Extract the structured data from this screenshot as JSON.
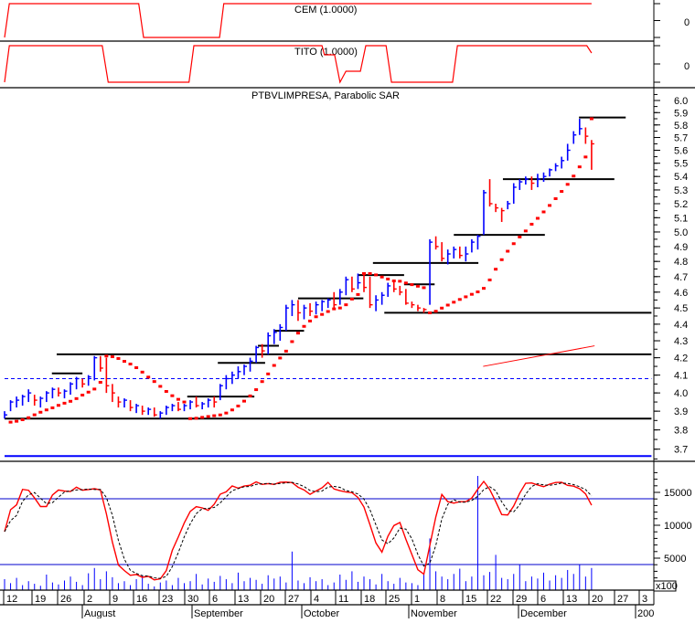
{
  "panels": {
    "cem": {
      "label": "CEM (1.0000)",
      "axis_label": "0",
      "steps": [
        [
          0,
          -1
        ],
        [
          0.8,
          1
        ],
        [
          22.4,
          1
        ],
        [
          23.2,
          -1
        ],
        [
          35.9,
          -1
        ],
        [
          36.6,
          1
        ],
        [
          98,
          1
        ]
      ]
    },
    "tito": {
      "label": "TITO (1.0000)",
      "axis_label": "0",
      "steps": [
        [
          0,
          -1
        ],
        [
          0.8,
          1
        ],
        [
          16.3,
          1
        ],
        [
          17.3,
          -1
        ],
        [
          30.8,
          -1
        ],
        [
          31.6,
          1
        ],
        [
          53,
          1
        ],
        [
          53.4,
          0.5
        ],
        [
          55.1,
          0.5
        ],
        [
          56,
          -1
        ],
        [
          57,
          -0.4
        ],
        [
          59.4,
          -0.4
        ],
        [
          60.3,
          1
        ],
        [
          63.7,
          1
        ],
        [
          64.6,
          -1
        ],
        [
          74.8,
          -1
        ],
        [
          75.6,
          1
        ],
        [
          97.2,
          1
        ],
        [
          98,
          0.6
        ]
      ]
    },
    "price": {
      "title": "PTBVLIMPRESA, Parabolic SAR"
    }
  },
  "chart_data": {
    "type": "ohlc",
    "title": "PTBVLIMPRESA, Parabolic SAR",
    "y_scale": "log",
    "ylim": [
      3.66,
      6.05
    ],
    "y_ticks": [
      "6.0",
      "5.9",
      "5.8",
      "5.7",
      "5.6",
      "5.5",
      "5.4",
      "5.3",
      "5.2",
      "5.1",
      "5.0",
      "4.9",
      "4.8",
      "4.7",
      "4.6",
      "4.5",
      "4.4",
      "4.3",
      "4.2",
      "4.1",
      "4.0",
      "3.9",
      "3.8",
      "3.7"
    ],
    "bars_hlc": [
      [
        3.9,
        3.86,
        3.88
      ],
      [
        3.96,
        3.9,
        3.95
      ],
      [
        3.98,
        3.92,
        3.96
      ],
      [
        3.99,
        3.93,
        3.98
      ],
      [
        4.02,
        3.95,
        4.0
      ],
      [
        3.99,
        3.93,
        3.96
      ],
      [
        3.98,
        3.92,
        3.97
      ],
      [
        4.01,
        3.95,
        4.0
      ],
      [
        4.03,
        3.97,
        4.02
      ],
      [
        4.03,
        3.98,
        4.0
      ],
      [
        4.02,
        3.97,
        4.01
      ],
      [
        4.06,
        3.99,
        4.05
      ],
      [
        4.09,
        4.02,
        4.08
      ],
      [
        4.08,
        4.03,
        4.05
      ],
      [
        4.1,
        4.04,
        4.09
      ],
      [
        4.21,
        4.07,
        4.2
      ],
      [
        4.21,
        4.12,
        4.14
      ],
      [
        4.2,
        4.0,
        4.04
      ],
      [
        4.05,
        3.95,
        4.0
      ],
      [
        3.98,
        3.92,
        3.95
      ],
      [
        3.97,
        3.92,
        3.96
      ],
      [
        3.96,
        3.9,
        3.92
      ],
      [
        3.94,
        3.89,
        3.93
      ],
      [
        3.93,
        3.88,
        3.9
      ],
      [
        3.92,
        3.88,
        3.91
      ],
      [
        3.92,
        3.87,
        3.88
      ],
      [
        3.9,
        3.86,
        3.89
      ],
      [
        3.93,
        3.88,
        3.92
      ],
      [
        3.94,
        3.9,
        3.93
      ],
      [
        3.95,
        3.9,
        3.91
      ],
      [
        3.94,
        3.9,
        3.93
      ],
      [
        3.96,
        3.91,
        3.95
      ],
      [
        3.98,
        3.92,
        3.93
      ],
      [
        3.95,
        3.91,
        3.94
      ],
      [
        3.97,
        3.92,
        3.96
      ],
      [
        3.98,
        3.92,
        3.95
      ],
      [
        4.05,
        3.96,
        4.04
      ],
      [
        4.1,
        4.02,
        4.08
      ],
      [
        4.12,
        4.05,
        4.1
      ],
      [
        4.15,
        4.08,
        4.12
      ],
      [
        4.16,
        4.1,
        4.15
      ],
      [
        4.2,
        4.12,
        4.18
      ],
      [
        4.27,
        4.17,
        4.26
      ],
      [
        4.28,
        4.2,
        4.24
      ],
      [
        4.35,
        4.22,
        4.33
      ],
      [
        4.37,
        4.28,
        4.35
      ],
      [
        4.4,
        4.3,
        4.38
      ],
      [
        4.52,
        4.36,
        4.5
      ],
      [
        4.55,
        4.45,
        4.52
      ],
      [
        4.55,
        4.42,
        4.47
      ],
      [
        4.52,
        4.43,
        4.5
      ],
      [
        4.53,
        4.45,
        4.48
      ],
      [
        4.54,
        4.46,
        4.52
      ],
      [
        4.55,
        4.48,
        4.54
      ],
      [
        4.56,
        4.5,
        4.55
      ],
      [
        4.6,
        4.5,
        4.52
      ],
      [
        4.62,
        4.52,
        4.6
      ],
      [
        4.7,
        4.58,
        4.68
      ],
      [
        4.7,
        4.6,
        4.62
      ],
      [
        4.72,
        4.62,
        4.66
      ],
      [
        4.72,
        4.6,
        4.63
      ],
      [
        4.7,
        4.5,
        4.52
      ],
      [
        4.58,
        4.48,
        4.55
      ],
      [
        4.6,
        4.52,
        4.58
      ],
      [
        4.66,
        4.57,
        4.64
      ],
      [
        4.67,
        4.6,
        4.62
      ],
      [
        4.64,
        4.58,
        4.6
      ],
      [
        4.62,
        4.52,
        4.53
      ],
      [
        4.54,
        4.5,
        4.52
      ],
      [
        4.52,
        4.48,
        4.5
      ],
      [
        4.5,
        4.47,
        4.49
      ],
      [
        4.95,
        4.52,
        4.93
      ],
      [
        4.97,
        4.88,
        4.9
      ],
      [
        4.93,
        4.8,
        4.82
      ],
      [
        4.88,
        4.78,
        4.85
      ],
      [
        4.9,
        4.82,
        4.88
      ],
      [
        4.9,
        4.82,
        4.84
      ],
      [
        4.9,
        4.8,
        4.85
      ],
      [
        4.95,
        4.86,
        4.93
      ],
      [
        4.98,
        4.88,
        4.97
      ],
      [
        5.3,
        4.98,
        5.28
      ],
      [
        5.38,
        5.18,
        5.2
      ],
      [
        5.2,
        5.14,
        5.17
      ],
      [
        5.17,
        5.07,
        5.15
      ],
      [
        5.22,
        5.16,
        5.2
      ],
      [
        5.35,
        5.2,
        5.32
      ],
      [
        5.38,
        5.3,
        5.36
      ],
      [
        5.4,
        5.34,
        5.38
      ],
      [
        5.4,
        5.3,
        5.35
      ],
      [
        5.42,
        5.32,
        5.38
      ],
      [
        5.43,
        5.36,
        5.4
      ],
      [
        5.46,
        5.4,
        5.45
      ],
      [
        5.5,
        5.44,
        5.48
      ],
      [
        5.55,
        5.46,
        5.52
      ],
      [
        5.65,
        5.52,
        5.6
      ],
      [
        5.75,
        5.65,
        5.72
      ],
      [
        5.85,
        5.72,
        5.77
      ],
      [
        5.78,
        5.65,
        5.71
      ],
      [
        5.68,
        5.45,
        5.65
      ]
    ],
    "horizontal_lines": [
      {
        "level": 3.86,
        "from": 0,
        "to": 108,
        "color": "#000000"
      },
      {
        "level": 4.22,
        "from": 8.7,
        "to": 108,
        "color": "#000000"
      },
      {
        "level": 4.47,
        "from": 63.4,
        "to": 108,
        "color": "#000000"
      },
      {
        "level": 4.08,
        "from": 0,
        "to": 108,
        "color": "#0000ff",
        "dashed": true
      },
      {
        "level": 3.665,
        "from": 0,
        "to": 108,
        "color": "#0000ff"
      },
      {
        "level": 4.11,
        "from": 7.9,
        "to": 13
      },
      {
        "level": 3.98,
        "from": 30.5,
        "to": 41.7
      },
      {
        "level": 4.17,
        "from": 35.6,
        "to": 43.5
      },
      {
        "level": 4.27,
        "from": 42.3,
        "to": 45.8
      },
      {
        "level": 4.36,
        "from": 45,
        "to": 50
      },
      {
        "level": 4.56,
        "from": 49,
        "to": 59.9
      },
      {
        "level": 4.71,
        "from": 59.1,
        "to": 66.7
      },
      {
        "level": 4.65,
        "from": 66.7,
        "to": 71.8
      },
      {
        "level": 4.79,
        "from": 61.5,
        "to": 79.1
      },
      {
        "level": 4.98,
        "from": 75,
        "to": 90.2
      },
      {
        "level": 5.38,
        "from": 83.2,
        "to": 101.8
      },
      {
        "level": 5.86,
        "from": 95.9,
        "to": 103.7
      }
    ],
    "trendline": {
      "from": [
        79.9,
        4.15
      ],
      "to": [
        98.5,
        4.27
      ],
      "color": "#ff0000"
    },
    "up_color": "#0000ff",
    "down_color": "#ff0000",
    "sar_color": "#ff0000"
  },
  "oscillator": {
    "levels": [
      80,
      20
    ],
    "volume_ticks": [
      "15000",
      "10000",
      "5000"
    ],
    "volume_unit": "x100",
    "volume": [
      1800,
      1200,
      2000,
      900,
      1500,
      1100,
      800,
      2500,
      1300,
      1000,
      1600,
      2200,
      1400,
      900,
      2700,
      3500,
      1800,
      3000,
      2100,
      1200,
      1500,
      900,
      1800,
      2400,
      1100,
      700,
      1300,
      1600,
      900,
      2000,
      1200,
      1500,
      2600,
      1000,
      1900,
      1400,
      2300,
      1800,
      1200,
      2800,
      1500,
      2000,
      1700,
      1100,
      2400,
      1900,
      2200,
      1300,
      6000,
      1600,
      1200,
      2100,
      1500,
      1800,
      900,
      1300,
      2500,
      1700,
      3000,
      1400,
      2200,
      1800,
      1000,
      2600,
      1500,
      1100,
      2000,
      1300,
      1200,
      900,
      2500,
      8000,
      3000,
      2200,
      1800,
      2600,
      3400,
      1500,
      2200,
      17500,
      2400,
      2900,
      5500,
      2000,
      1800,
      2600,
      4000,
      1500,
      2200,
      1900,
      2800,
      1600,
      2400,
      2000,
      3200,
      2600,
      4000,
      2200,
      3500
    ]
  },
  "x_axis": {
    "day_ticks": [
      "12",
      "19",
      "26",
      "2",
      "9",
      "16",
      "23",
      "30",
      "6",
      "13",
      "20",
      "27",
      "4",
      "11",
      "18",
      "25",
      "1",
      "8",
      "15",
      "22",
      "29",
      "6",
      "13",
      "20",
      "27",
      "3"
    ],
    "months": [
      "August",
      "September",
      "October",
      "November",
      "December",
      "200"
    ]
  }
}
